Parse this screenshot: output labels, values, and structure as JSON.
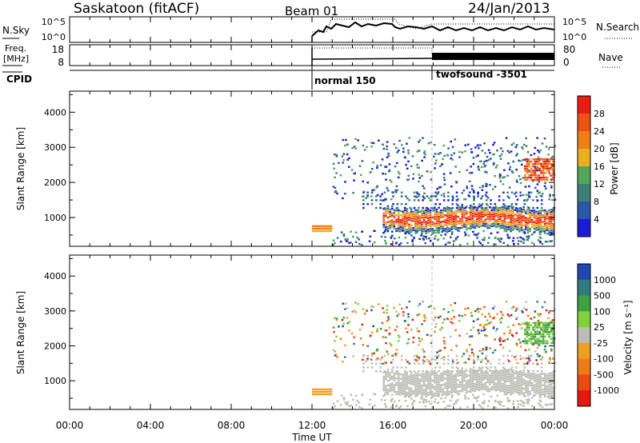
{
  "header": {
    "station": "Saskatoon (fitACF)",
    "beam": "Beam 01",
    "date": "24/Jan/2013"
  },
  "noise_panel": {
    "left_label": "N.Sky",
    "left_ticks": [
      "10^5",
      "10^0"
    ],
    "right_label": "N.Search",
    "right_ticks": [
      "10^5",
      "10^0"
    ]
  },
  "freq_panel": {
    "left_label_1": "Freq.",
    "left_label_2": "[MHz]",
    "left_ticks": [
      "18",
      "8"
    ],
    "right_label": "Nave",
    "right_ticks": [
      "80",
      "0"
    ]
  },
  "cpid_panel": {
    "label": "CPID",
    "programs": [
      {
        "name": "normal 150",
        "start": "12:00"
      },
      {
        "name": "twofsound -3501",
        "start": "18:00"
      }
    ]
  },
  "time_axis": {
    "label": "Time UT",
    "ticks": [
      "00:00",
      "04:00",
      "08:00",
      "12:00",
      "16:00",
      "20:00",
      "00:00"
    ]
  },
  "colors": {
    "power_scale": [
      "#1b1bd6",
      "#2a57a8",
      "#3f7f78",
      "#4fa85a",
      "#e8b020",
      "#f07f18",
      "#ee5210",
      "#e81e10"
    ],
    "velocity_scale": [
      "#2046b0",
      "#2f7d7d",
      "#3fa040",
      "#7fd23a",
      "#bdbdb6",
      "#f0a020",
      "#ee7a1a",
      "#ec4a14",
      "#e81810"
    ]
  },
  "chart_data": [
    {
      "type": "heatmap",
      "panel": "power",
      "ylabel": "Slant Range [km]",
      "yticks": [
        "1000",
        "2000",
        "3000",
        "4000"
      ],
      "ylim": [
        180,
        4600
      ],
      "xlim_hours": [
        0,
        24
      ],
      "colorbar": {
        "label": "Power [dB]",
        "ticks": [
          "4",
          "8",
          "12",
          "16",
          "20",
          "24",
          "28"
        ],
        "range": [
          0,
          32
        ]
      },
      "data_coverage_hours": [
        12,
        24
      ],
      "main_echo_band_km": [
        600,
        1500
      ],
      "peak_power_dB": 28
    },
    {
      "type": "heatmap",
      "panel": "velocity",
      "ylabel": "Slant Range [km]",
      "yticks": [
        "1000",
        "2000",
        "3000",
        "4000"
      ],
      "ylim": [
        180,
        4600
      ],
      "xlim_hours": [
        0,
        24
      ],
      "colorbar": {
        "label": "Velocity [m s⁻¹]",
        "ticks": [
          "1000",
          "500",
          "100",
          "25",
          "-25",
          "-100",
          "-500",
          "-1000"
        ]
      },
      "data_coverage_hours": [
        12,
        24
      ],
      "main_echo_band_km": [
        600,
        1500
      ],
      "dominant_velocity": "ground scatter (-25 to 25)"
    }
  ]
}
